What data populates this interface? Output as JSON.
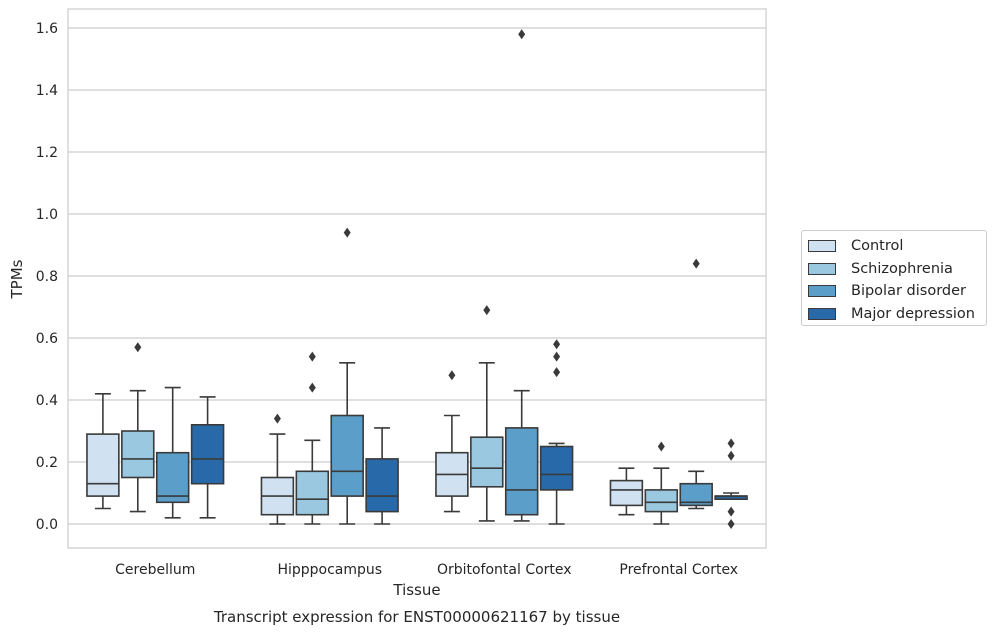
{
  "chart_data": {
    "type": "box",
    "title": "",
    "caption": "Transcript expression for ENST00000621167 by tissue",
    "xlabel": "Tissue",
    "ylabel": "TPMs",
    "ylim": [
      -0.08,
      1.66
    ],
    "yticks": [
      0.0,
      0.2,
      0.4,
      0.6,
      0.8,
      1.0,
      1.2,
      1.4,
      1.6
    ],
    "ytick_labels": [
      "0.0",
      "0.2",
      "0.4",
      "0.6",
      "0.8",
      "1.0",
      "1.2",
      "1.4",
      "1.6"
    ],
    "grid": "horizontal",
    "legend_position": "right",
    "categories": [
      "Cerebellum",
      "Hipppocampus",
      "Orbitofontal Cortex",
      "Prefrontal Cortex"
    ],
    "series": [
      {
        "name": "Control",
        "color": "#d0e1f2",
        "boxes": [
          {
            "whislo": 0.05,
            "q1": 0.09,
            "med": 0.13,
            "q3": 0.29,
            "whishi": 0.42,
            "fliers": []
          },
          {
            "whislo": 0.0,
            "q1": 0.03,
            "med": 0.09,
            "q3": 0.15,
            "whishi": 0.29,
            "fliers": [
              0.34
            ]
          },
          {
            "whislo": 0.04,
            "q1": 0.09,
            "med": 0.16,
            "q3": 0.23,
            "whishi": 0.35,
            "fliers": [
              0.48
            ]
          },
          {
            "whislo": 0.03,
            "q1": 0.06,
            "med": 0.11,
            "q3": 0.14,
            "whishi": 0.18,
            "fliers": []
          }
        ]
      },
      {
        "name": "Schizophrenia",
        "color": "#9ac8e0",
        "boxes": [
          {
            "whislo": 0.04,
            "q1": 0.15,
            "med": 0.21,
            "q3": 0.3,
            "whishi": 0.43,
            "fliers": [
              0.57
            ]
          },
          {
            "whislo": 0.0,
            "q1": 0.03,
            "med": 0.08,
            "q3": 0.17,
            "whishi": 0.27,
            "fliers": [
              0.44,
              0.54
            ]
          },
          {
            "whislo": 0.01,
            "q1": 0.12,
            "med": 0.18,
            "q3": 0.28,
            "whishi": 0.52,
            "fliers": [
              0.69
            ]
          },
          {
            "whislo": 0.0,
            "q1": 0.04,
            "med": 0.07,
            "q3": 0.11,
            "whishi": 0.18,
            "fliers": [
              0.25
            ]
          }
        ]
      },
      {
        "name": "Bipolar disorder",
        "color": "#5a9ec9",
        "boxes": [
          {
            "whislo": 0.02,
            "q1": 0.07,
            "med": 0.09,
            "q3": 0.23,
            "whishi": 0.44,
            "fliers": []
          },
          {
            "whislo": 0.0,
            "q1": 0.09,
            "med": 0.17,
            "q3": 0.35,
            "whishi": 0.52,
            "fliers": [
              0.94
            ]
          },
          {
            "whislo": 0.01,
            "q1": 0.03,
            "med": 0.11,
            "q3": 0.31,
            "whishi": 0.43,
            "fliers": [
              1.58
            ]
          },
          {
            "whislo": 0.05,
            "q1": 0.06,
            "med": 0.07,
            "q3": 0.13,
            "whishi": 0.17,
            "fliers": [
              0.84
            ]
          }
        ]
      },
      {
        "name": "Major depression",
        "color": "#2869aa",
        "boxes": [
          {
            "whislo": 0.02,
            "q1": 0.13,
            "med": 0.21,
            "q3": 0.32,
            "whishi": 0.41,
            "fliers": []
          },
          {
            "whislo": 0.0,
            "q1": 0.04,
            "med": 0.09,
            "q3": 0.21,
            "whishi": 0.31,
            "fliers": []
          },
          {
            "whislo": 0.0,
            "q1": 0.11,
            "med": 0.16,
            "q3": 0.25,
            "whishi": 0.26,
            "fliers": [
              0.49,
              0.54,
              0.58
            ]
          },
          {
            "whislo": 0.08,
            "q1": 0.08,
            "med": 0.09,
            "q3": 0.09,
            "whishi": 0.1,
            "fliers": [
              0.0,
              0.04,
              0.22,
              0.26
            ]
          }
        ]
      }
    ]
  }
}
